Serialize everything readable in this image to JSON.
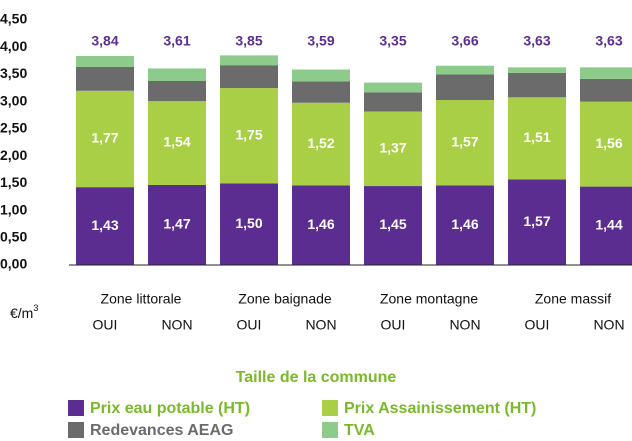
{
  "chart_data": {
    "type": "stacked_bar",
    "categories": [
      "OUI",
      "NON",
      "OUI",
      "NON",
      "OUI",
      "NON",
      "OUI",
      "NON"
    ],
    "groups": [
      "Zone littorale",
      "Zone baignade",
      "Zone montagne",
      "Zone massif"
    ],
    "unit_label": "€/m",
    "unit_exponent": "3",
    "x_label": "Taille de la commune",
    "series": [
      {
        "name": "Prix eau potable (HT)",
        "color": "#5c2d91",
        "values": [
          1.43,
          1.47,
          1.5,
          1.46,
          1.45,
          1.46,
          1.57,
          1.44
        ],
        "value_labels": [
          "1,43",
          "1,47",
          "1,50",
          "1,46",
          "1,45",
          "1,46",
          "1,57",
          "1,44"
        ]
      },
      {
        "name": "Prix Assainissement (HT)",
        "color": "#a8cf45",
        "values": [
          1.77,
          1.54,
          1.75,
          1.52,
          1.37,
          1.57,
          1.51,
          1.56
        ],
        "value_labels": [
          "1,77",
          "1,54",
          "1,75",
          "1,52",
          "1,37",
          "1,57",
          "1,51",
          "1,56"
        ]
      },
      {
        "name": "Redevances AEAG",
        "color": "#6b6b6b",
        "values": [
          0.44,
          0.37,
          0.42,
          0.39,
          0.35,
          0.47,
          0.45,
          0.42
        ]
      },
      {
        "name": "TVA",
        "color": "#8ccb8a",
        "values": [
          0.2,
          0.23,
          0.18,
          0.22,
          0.18,
          0.16,
          0.1,
          0.21
        ]
      }
    ],
    "totals": [
      3.84,
      3.61,
      3.85,
      3.59,
      3.35,
      3.66,
      3.63,
      3.63
    ],
    "total_labels": [
      "3,84",
      "3,61",
      "3,85",
      "3,59",
      "3,35",
      "3,66",
      "3,63",
      "3,63"
    ],
    "ylim": [
      0,
      4.5
    ],
    "yticks": [
      {
        "value": 0,
        "label": "0,00"
      },
      {
        "value": 0.5,
        "label": "0,50"
      },
      {
        "value": 1,
        "label": "1,00"
      },
      {
        "value": 1.5,
        "label": "1,50"
      },
      {
        "value": 2,
        "label": "2,00"
      },
      {
        "value": 2.5,
        "label": "2,50"
      },
      {
        "value": 3,
        "label": "3,00"
      },
      {
        "value": 3.5,
        "label": "3,50"
      },
      {
        "value": 4,
        "label": "4,00"
      },
      {
        "value": 4.5,
        "label": "4,50"
      }
    ],
    "grid": false
  }
}
